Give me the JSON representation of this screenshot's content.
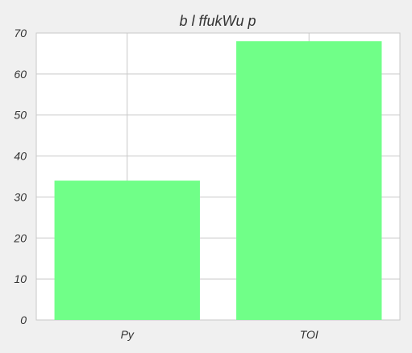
{
  "chart_data": {
    "type": "bar",
    "title": "b  l ffukWu p",
    "xlabel": "",
    "ylabel": "",
    "categories": [
      "Py",
      "TOI"
    ],
    "values": [
      34,
      68
    ],
    "ylim": [
      0,
      70
    ],
    "yticks": [
      0,
      10,
      20,
      30,
      40,
      50,
      60,
      70
    ],
    "grid": true,
    "bar_color": "#70ff88",
    "background_color": "#f0f0f0",
    "plot_background_color": "#ffffff",
    "grid_color": "#c8c8c8"
  }
}
